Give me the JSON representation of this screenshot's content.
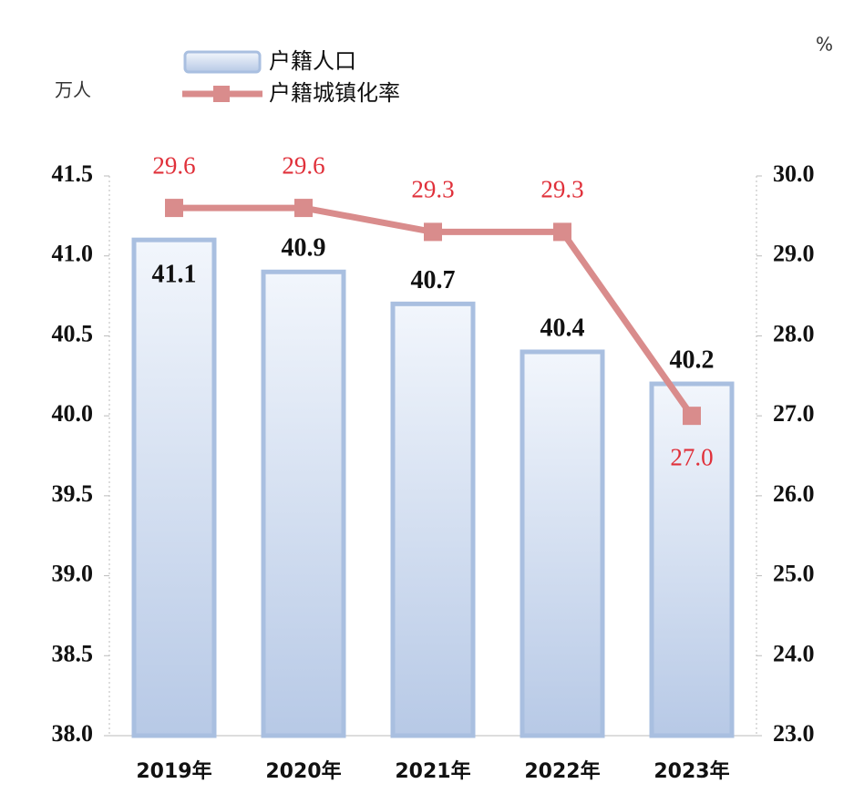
{
  "chart_data": {
    "type": "bar-line",
    "categories": [
      "2019年",
      "2020年",
      "2021年",
      "2022年",
      "2023年"
    ],
    "y_label": "万人",
    "y2_label": "%",
    "series": [
      {
        "name": "户籍人口",
        "type": "bar",
        "color": "#a9bfe0",
        "values": [
          41.1,
          40.9,
          40.7,
          40.4,
          40.2
        ]
      },
      {
        "name": "户籍城镇化率",
        "type": "line",
        "axis": "y2",
        "color": "#d98c8c",
        "values": [
          29.6,
          29.6,
          29.3,
          29.3,
          27.0
        ],
        "value_labels": [
          "29.6",
          "29.6",
          "29.3",
          "29.3",
          "27.0"
        ]
      }
    ],
    "ylim": [
      38.0,
      41.5
    ],
    "yticks": [
      {
        "value": 38,
        "label": "38.0"
      },
      38.5,
      {
        "value": 39,
        "label": "39.0"
      },
      39.5,
      {
        "value": 40,
        "label": "40.0"
      },
      40.5,
      {
        "value": 41,
        "label": "41.0"
      },
      41.5
    ],
    "y2lim": [
      23.0,
      30.0
    ],
    "y2ticks": [
      {
        "value": 23,
        "label": "23.0"
      },
      {
        "value": 24,
        "label": "24.0"
      },
      {
        "value": 25,
        "label": "25.0"
      },
      {
        "value": 26,
        "label": "26.0"
      },
      {
        "value": 27,
        "label": "27.0"
      },
      {
        "value": 28,
        "label": "28.0"
      },
      {
        "value": 29,
        "label": "29.0"
      },
      {
        "value": 30,
        "label": "30.0"
      }
    ]
  }
}
